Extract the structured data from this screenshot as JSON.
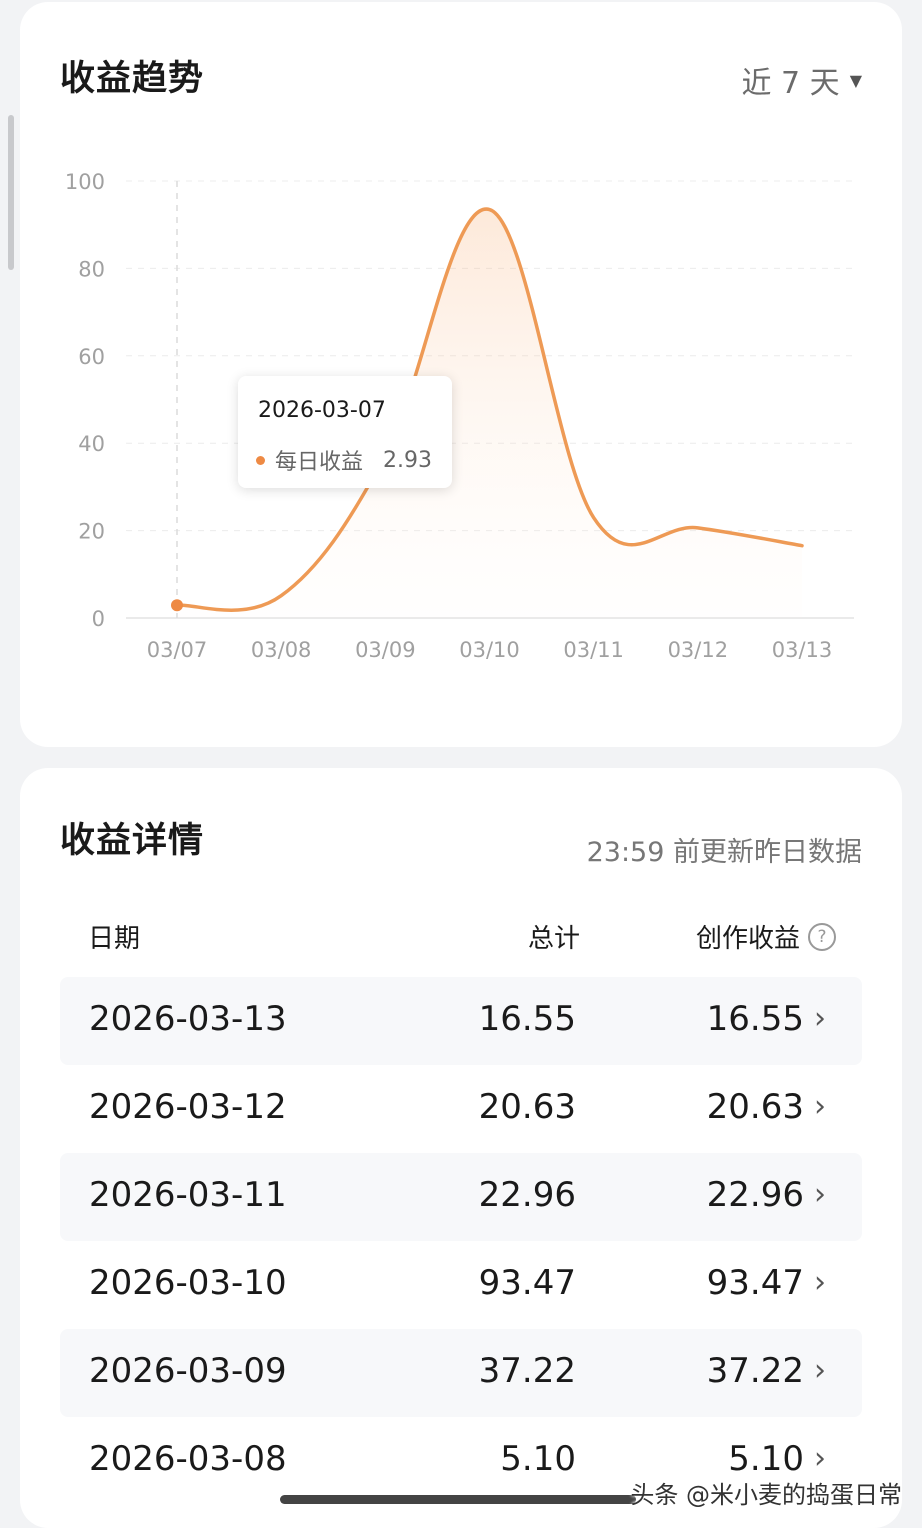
{
  "trend": {
    "title": "收益趋势",
    "range_label": "近 7 天"
  },
  "chart_data": {
    "type": "area",
    "categories": [
      "03/07",
      "03/08",
      "03/09",
      "03/10",
      "03/11",
      "03/12",
      "03/13"
    ],
    "y_ticks": [
      "100",
      "80",
      "60",
      "40",
      "20",
      "0"
    ],
    "ylim": [
      0,
      100
    ],
    "series": [
      {
        "name": "每日收益",
        "values": [
          2.93,
          5.1,
          37.22,
          93.47,
          22.96,
          20.63,
          16.55
        ],
        "color": "#ee9a55"
      }
    ],
    "grid": true,
    "smooth": true,
    "active_index": 0
  },
  "tooltip": {
    "date": "2026-03-07",
    "series_name": "每日收益",
    "value": "2.93"
  },
  "detail": {
    "title": "收益详情",
    "update_note": "23:59 前更新昨日数据",
    "headers": {
      "date": "日期",
      "total": "总计",
      "creation": "创作收益"
    },
    "rows": [
      {
        "date": "2026-03-13",
        "total": "16.55",
        "creation": "16.55"
      },
      {
        "date": "2026-03-12",
        "total": "20.63",
        "creation": "20.63"
      },
      {
        "date": "2026-03-11",
        "total": "22.96",
        "creation": "22.96"
      },
      {
        "date": "2026-03-10",
        "total": "93.47",
        "creation": "93.47"
      },
      {
        "date": "2026-03-09",
        "total": "37.22",
        "creation": "37.22"
      },
      {
        "date": "2026-03-08",
        "total": "5.10",
        "creation": "5.10"
      }
    ]
  },
  "watermark": "头条 @米小麦的捣蛋日常",
  "icons": {
    "dropdown": "caret-down-icon",
    "help": "help-circle-icon",
    "row_arrow": "chevron-right-icon"
  }
}
